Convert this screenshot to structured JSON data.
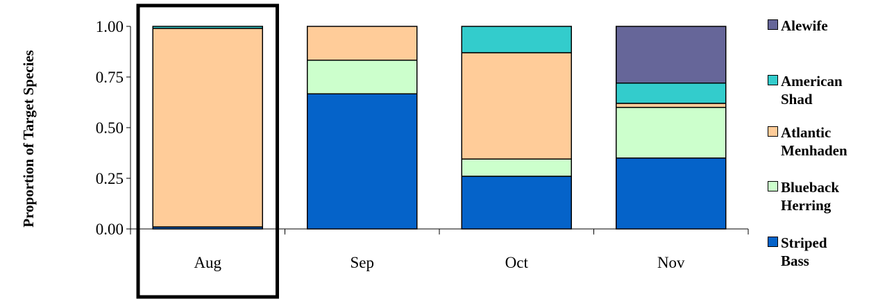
{
  "chart_data": {
    "type": "bar",
    "stacked": true,
    "categories": [
      "Aug",
      "Sep",
      "Oct",
      "Nov"
    ],
    "ylabel": "Proportion of Target Species",
    "ylim": [
      0,
      1
    ],
    "yticks": [
      "0.00",
      "0.25",
      "0.50",
      "0.75",
      "1.00"
    ],
    "highlighted_category": "Aug",
    "series": [
      {
        "name": "Striped Bass",
        "color": "#0563c9",
        "values": [
          0.01,
          0.667,
          0.26,
          0.35
        ]
      },
      {
        "name": "Blueback Herring",
        "color": "#ccffcc",
        "values": [
          0.0,
          0.166,
          0.085,
          0.25
        ]
      },
      {
        "name": "Atlantic Menhaden",
        "color": "#ffcc99",
        "values": [
          0.98,
          0.167,
          0.525,
          0.02
        ]
      },
      {
        "name": "American Shad",
        "color": "#33cccc",
        "values": [
          0.01,
          0.0,
          0.13,
          0.1
        ]
      },
      {
        "name": "Alewife",
        "color": "#666699",
        "values": [
          0.0,
          0.0,
          0.0,
          0.28
        ]
      }
    ],
    "legend_order": [
      "Alewife",
      "American Shad",
      "Atlantic Menhaden",
      "Blueback Herring",
      "Striped Bass"
    ],
    "legend_labels": {
      "Alewife": "Alewife",
      "American Shad": "American\nShad",
      "Atlantic Menhaden": "Atlantic\nMenhaden",
      "Blueback Herring": "Blueback\nHerring",
      "Striped Bass": "Striped\nBass"
    },
    "legend_position": "right",
    "grid": false
  }
}
